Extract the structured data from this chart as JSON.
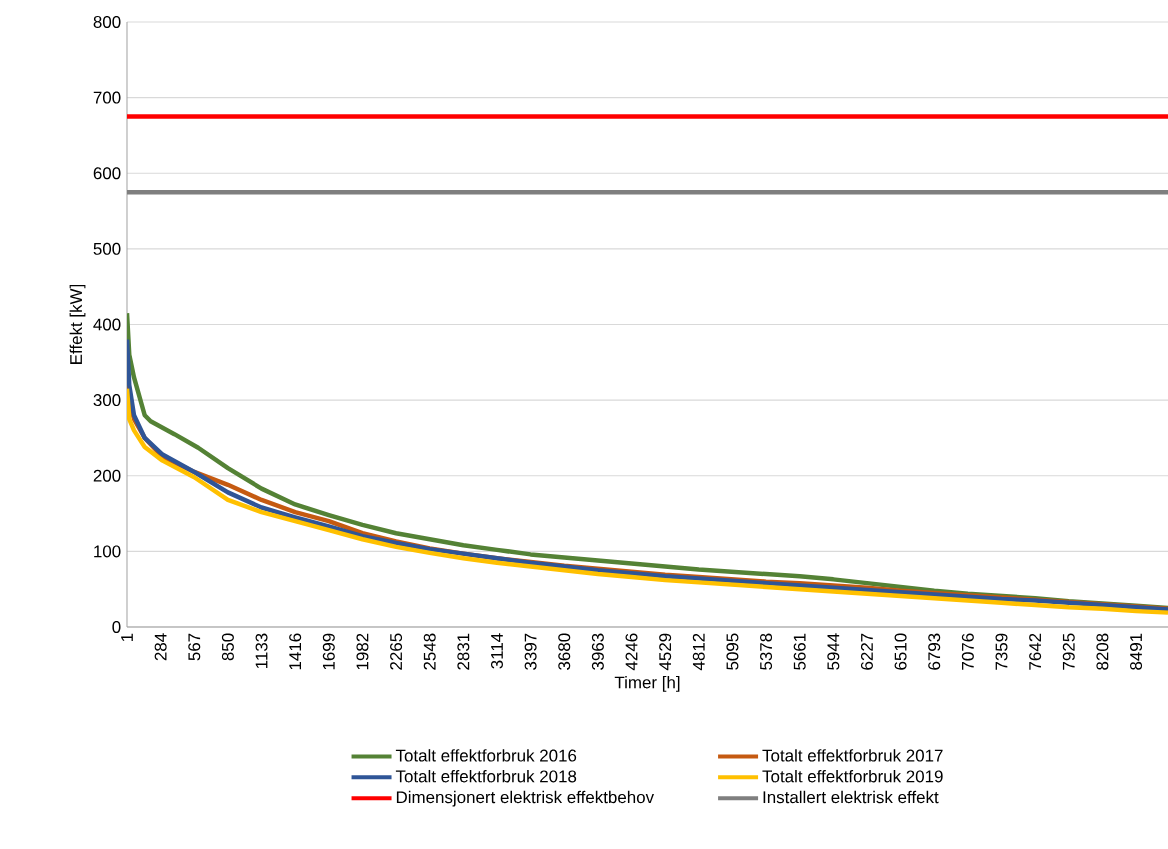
{
  "chart_data": {
    "type": "line",
    "xlabel": "Timer [h]",
    "ylabel": "Effekt [kW]",
    "xlim": [
      1,
      8760
    ],
    "xticks": [
      1,
      284,
      567,
      850,
      1133,
      1416,
      1699,
      1982,
      2265,
      2548,
      2831,
      3114,
      3397,
      3680,
      3963,
      4246,
      4529,
      4812,
      5095,
      5378,
      5661,
      5944,
      6227,
      6510,
      6793,
      7076,
      7359,
      7642,
      7925,
      8208,
      8491
    ],
    "ylim": [
      0,
      800
    ],
    "yticks": [
      0,
      100,
      200,
      300,
      400,
      500,
      600,
      700,
      800
    ],
    "grid": "y",
    "legend": "bottom",
    "marker": "none",
    "line_style": "solid",
    "series": [
      {
        "name": "Totalt effektforbruk 2016",
        "color": "#548235",
        "x": [
          1,
          20,
          60,
          150,
          200,
          400,
          600,
          850,
          1133,
          1416,
          1699,
          1982,
          2265,
          2548,
          2831,
          3114,
          3397,
          3680,
          3963,
          4246,
          4529,
          4812,
          5095,
          5378,
          5661,
          5944,
          6227,
          6510,
          6793,
          7076,
          7359,
          7642,
          7925,
          8208,
          8491,
          8760
        ],
        "values": [
          415,
          360,
          330,
          280,
          272,
          255,
          237,
          210,
          183,
          162,
          148,
          135,
          124,
          116,
          108,
          102,
          96,
          92,
          88,
          84,
          80,
          76,
          73,
          70,
          67,
          63,
          58,
          53,
          48,
          44,
          41,
          38,
          34,
          31,
          28,
          25
        ]
      },
      {
        "name": "Totalt effektforbruk 2017",
        "color": "#c55a11",
        "x": [
          1,
          20,
          60,
          150,
          300,
          567,
          850,
          1133,
          1416,
          1699,
          1982,
          2265,
          2548,
          2831,
          3114,
          3397,
          3680,
          3963,
          4246,
          4529,
          4812,
          5095,
          5378,
          5661,
          5944,
          6227,
          6510,
          6793,
          7076,
          7359,
          7642,
          7925,
          8208,
          8491,
          8760
        ],
        "values": [
          330,
          300,
          275,
          250,
          225,
          205,
          188,
          168,
          152,
          140,
          124,
          113,
          104,
          97,
          91,
          86,
          81,
          77,
          73,
          69,
          66,
          63,
          60,
          58,
          55,
          52,
          48,
          45,
          42,
          39,
          36,
          33,
          30,
          27,
          24
        ]
      },
      {
        "name": "Totalt effektforbruk 2018",
        "color": "#2f5597",
        "x": [
          1,
          20,
          60,
          150,
          300,
          567,
          850,
          1133,
          1416,
          1699,
          1982,
          2265,
          2548,
          2831,
          3114,
          3397,
          3680,
          3963,
          4246,
          4529,
          4812,
          5095,
          5378,
          5661,
          5944,
          6227,
          6510,
          6793,
          7076,
          7359,
          7642,
          7925,
          8208,
          8491,
          8760
        ],
        "values": [
          380,
          320,
          280,
          250,
          228,
          205,
          178,
          158,
          145,
          133,
          120,
          111,
          103,
          97,
          91,
          85,
          80,
          75,
          71,
          67,
          64,
          61,
          58,
          55,
          52,
          49,
          46,
          43,
          40,
          37,
          35,
          32,
          29,
          26,
          23
        ]
      },
      {
        "name": "Totalt effektforbruk 2019",
        "color": "#ffc000",
        "x": [
          1,
          20,
          60,
          150,
          300,
          567,
          850,
          1133,
          1416,
          1699,
          1982,
          2265,
          2548,
          2831,
          3114,
          3397,
          3680,
          3963,
          4246,
          4529,
          4812,
          5095,
          5378,
          5661,
          5944,
          6227,
          6510,
          6793,
          7076,
          7359,
          7642,
          7925,
          8208,
          8491,
          8760
        ],
        "values": [
          315,
          275,
          260,
          238,
          220,
          198,
          168,
          152,
          140,
          128,
          116,
          106,
          98,
          91,
          85,
          80,
          75,
          70,
          66,
          62,
          59,
          56,
          53,
          50,
          47,
          44,
          41,
          38,
          35,
          32,
          29,
          26,
          24,
          21,
          19
        ]
      },
      {
        "name": "Dimensjonert elektrisk effektbehov",
        "color": "#ff0000",
        "x": [
          1,
          8760
        ],
        "values": [
          675,
          675
        ]
      },
      {
        "name": "Installert elektrisk effekt",
        "color": "#7f7f7f",
        "x": [
          1,
          8760
        ],
        "values": [
          575,
          575
        ]
      }
    ]
  }
}
